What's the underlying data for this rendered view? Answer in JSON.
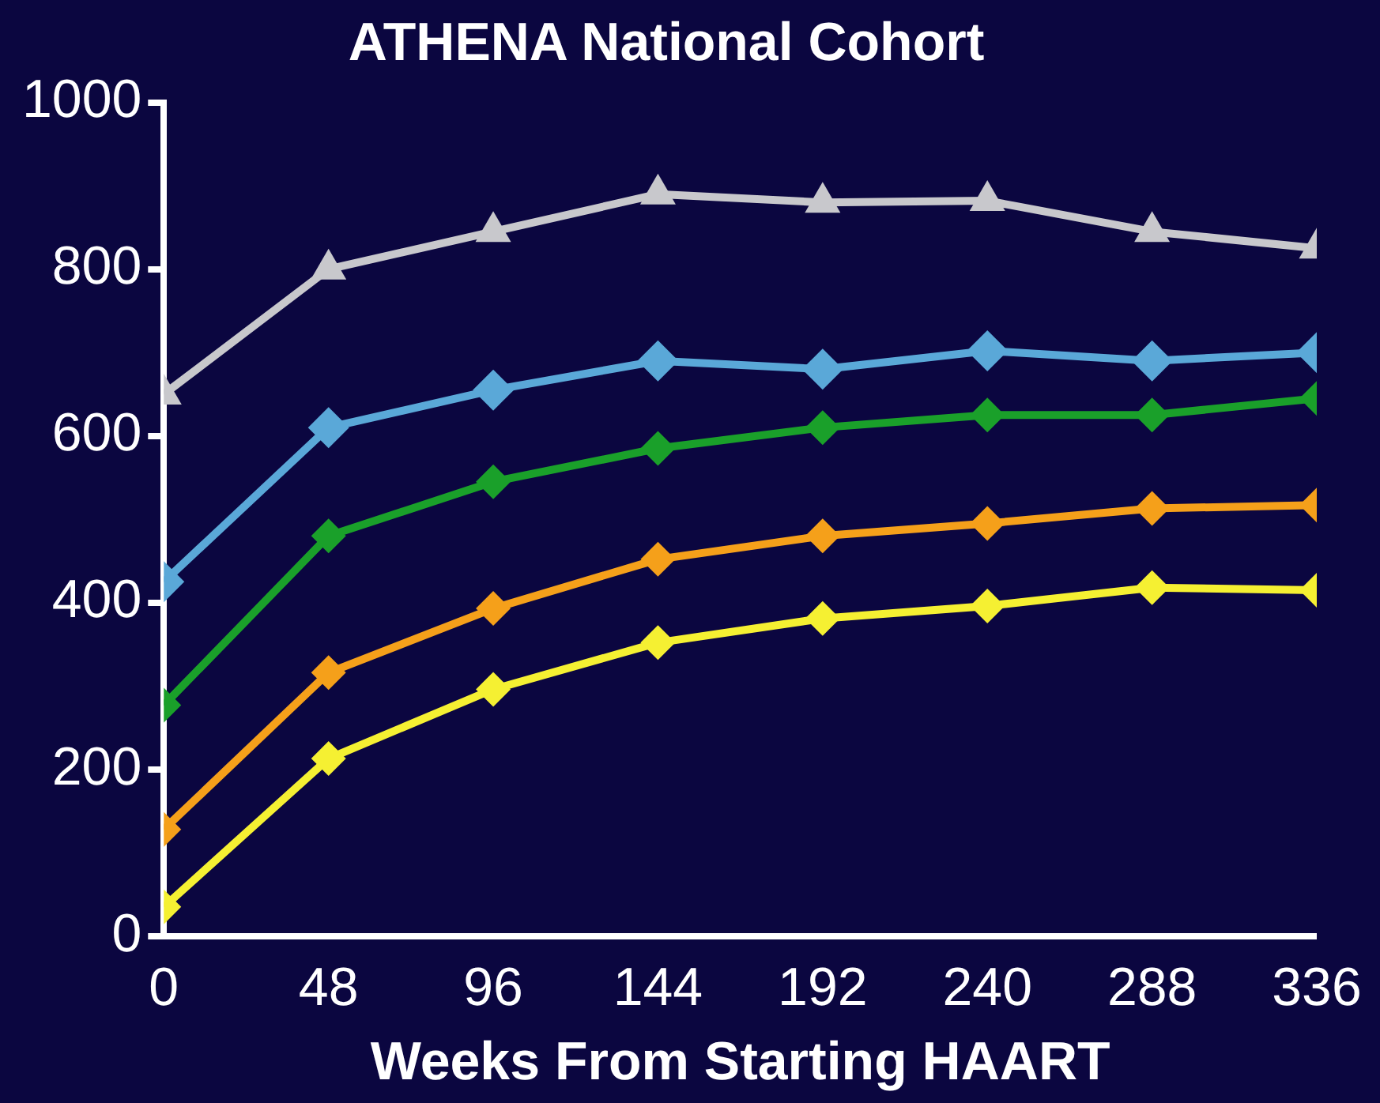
{
  "chart_data": {
    "type": "line",
    "title": "ATHENA National Cohort",
    "xlabel": "Weeks From Starting HAART",
    "x": [
      0,
      48,
      96,
      144,
      192,
      240,
      288,
      336
    ],
    "xlim": [
      0,
      336
    ],
    "xticks": [
      0,
      48,
      96,
      144,
      192,
      240,
      288,
      336
    ],
    "ylim": [
      0,
      1000
    ],
    "yticks": [
      0,
      200,
      400,
      600,
      800,
      1000
    ],
    "grid": false,
    "legend": false,
    "series": [
      {
        "color": "#c8c8cc",
        "marker": "triangle",
        "values": [
          650,
          800,
          845,
          890,
          880,
          882,
          845,
          825
        ]
      },
      {
        "color": "#5aa8d8",
        "marker": "diamond",
        "values": [
          425,
          610,
          655,
          690,
          680,
          702,
          690,
          700
        ]
      },
      {
        "color": "#1aa02a",
        "marker": "diamond",
        "values": [
          277,
          480,
          545,
          585,
          610,
          625,
          625,
          645
        ]
      },
      {
        "color": "#f5a01a",
        "marker": "diamond",
        "values": [
          128,
          316,
          393,
          452,
          480,
          495,
          513,
          517
        ]
      },
      {
        "color": "#f5f032",
        "marker": "diamond",
        "values": [
          35,
          213,
          296,
          352,
          381,
          396,
          418,
          415
        ]
      }
    ]
  }
}
